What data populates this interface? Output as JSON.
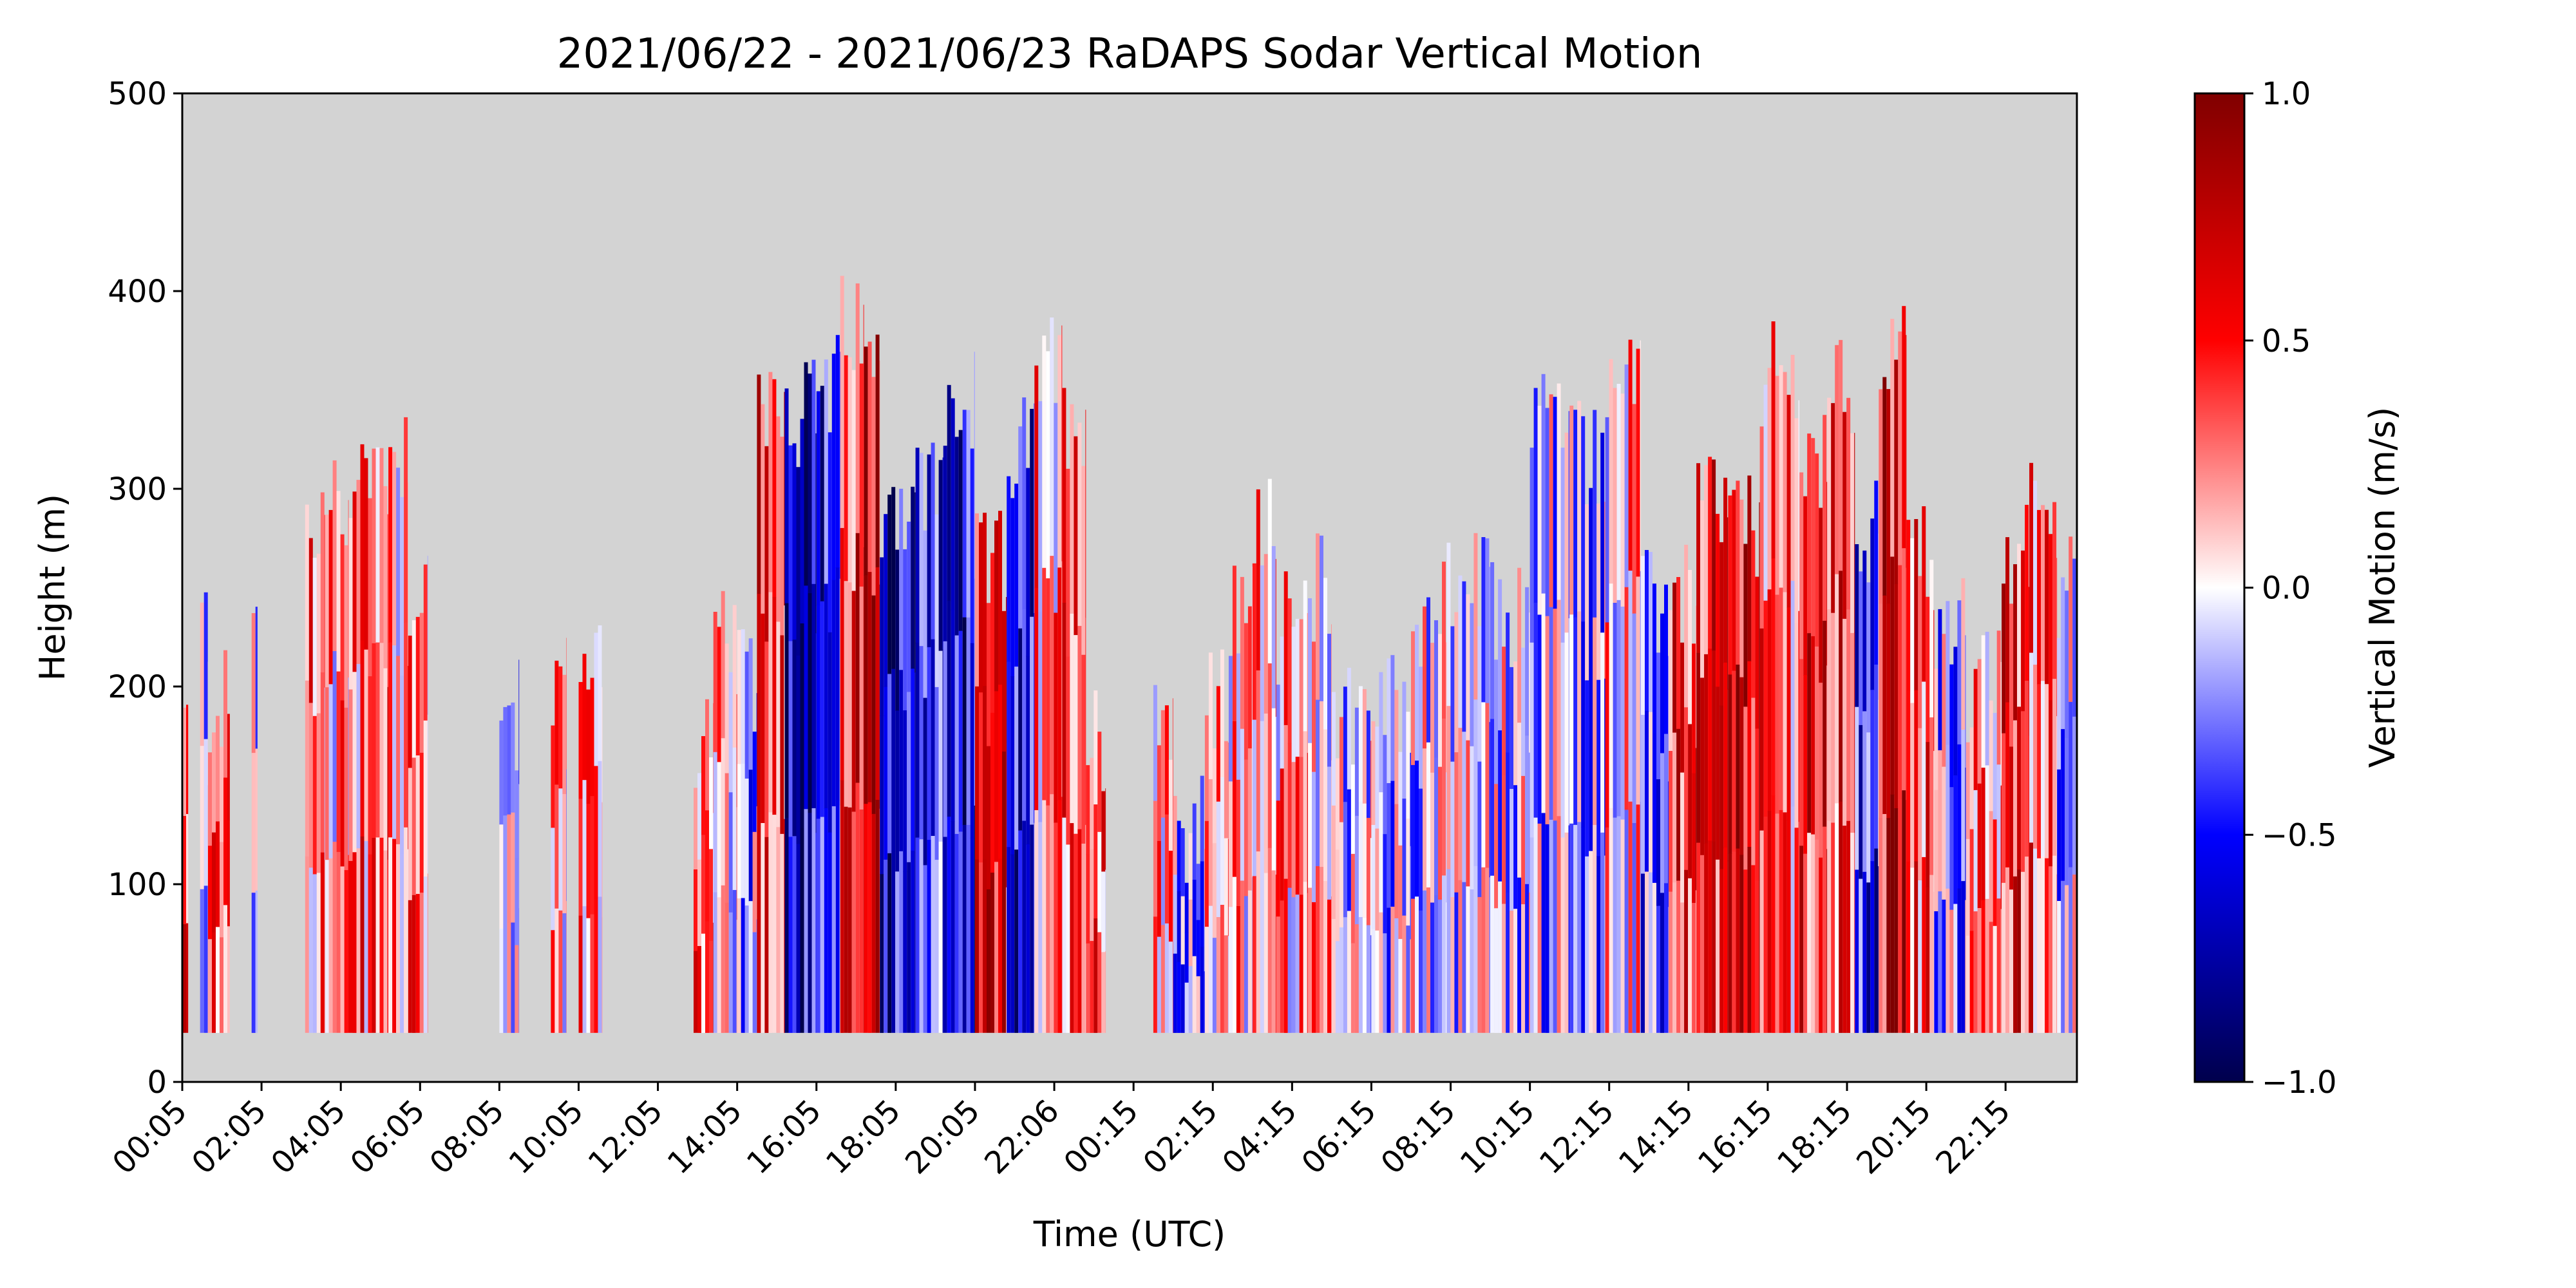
{
  "chart_data": {
    "type": "heatmap",
    "title": "2021/06/22 - 2021/06/23 RaDAPS Sodar Vertical Motion",
    "xlabel": "Time (UTC)",
    "ylabel": "Height (m)",
    "xlim_hours": [
      0,
      47.8
    ],
    "ylim": [
      0,
      500
    ],
    "y_ticks": [
      "0",
      "100",
      "200",
      "300",
      "400",
      "500"
    ],
    "x_ticks": [
      {
        "label": "00:05",
        "hour": 0.0
      },
      {
        "label": "02:05",
        "hour": 2.0
      },
      {
        "label": "04:05",
        "hour": 4.0
      },
      {
        "label": "06:05",
        "hour": 6.0
      },
      {
        "label": "08:05",
        "hour": 8.0
      },
      {
        "label": "10:05",
        "hour": 10.0
      },
      {
        "label": "12:05",
        "hour": 12.0
      },
      {
        "label": "14:05",
        "hour": 14.0
      },
      {
        "label": "16:05",
        "hour": 16.0
      },
      {
        "label": "18:05",
        "hour": 18.0
      },
      {
        "label": "20:05",
        "hour": 20.0
      },
      {
        "label": "22:06",
        "hour": 22.0
      },
      {
        "label": "00:15",
        "hour": 24.0
      },
      {
        "label": "02:15",
        "hour": 26.0
      },
      {
        "label": "04:15",
        "hour": 28.0
      },
      {
        "label": "06:15",
        "hour": 30.0
      },
      {
        "label": "08:15",
        "hour": 32.0
      },
      {
        "label": "10:15",
        "hour": 34.0
      },
      {
        "label": "12:15",
        "hour": 36.0
      },
      {
        "label": "14:15",
        "hour": 38.0
      },
      {
        "label": "16:15",
        "hour": 40.0
      },
      {
        "label": "18:15",
        "hour": 42.0
      },
      {
        "label": "20:15",
        "hour": 44.0
      },
      {
        "label": "22:15",
        "hour": 46.0
      }
    ],
    "colorbar": {
      "label": "Vertical Motion (m/s)",
      "range": [
        -1.0,
        1.0
      ],
      "ticks": [
        "1.0",
        "0.5",
        "0.0",
        "−0.5",
        "−1.0"
      ],
      "colormap": "seismic",
      "colors": [
        "#00004c",
        "#0000ff",
        "#ffffff",
        "#ff0000",
        "#800000"
      ]
    },
    "background_color": "#d3d3d3",
    "data_floor_m": 25,
    "segments": [
      {
        "start": 0.0,
        "end": 0.15,
        "top": 180,
        "mean": 0.35
      },
      {
        "start": 0.45,
        "end": 0.65,
        "top": 230,
        "mean": -0.15
      },
      {
        "start": 0.65,
        "end": 1.2,
        "top": 190,
        "mean": 0.3
      },
      {
        "start": 1.75,
        "end": 1.9,
        "top": 235,
        "mean": -0.05
      },
      {
        "start": 3.1,
        "end": 3.6,
        "top": 280,
        "mean": 0.3
      },
      {
        "start": 3.6,
        "end": 4.2,
        "top": 290,
        "mean": 0.15
      },
      {
        "start": 4.2,
        "end": 5.2,
        "top": 310,
        "mean": 0.3
      },
      {
        "start": 5.2,
        "end": 5.7,
        "top": 320,
        "mean": 0.2
      },
      {
        "start": 5.7,
        "end": 6.2,
        "top": 250,
        "mean": 0.25
      },
      {
        "start": 8.0,
        "end": 8.5,
        "top": 185,
        "mean": -0.15
      },
      {
        "start": 9.3,
        "end": 9.7,
        "top": 200,
        "mean": 0.1
      },
      {
        "start": 10.0,
        "end": 10.6,
        "top": 215,
        "mean": 0.2
      },
      {
        "start": 12.9,
        "end": 13.4,
        "top": 175,
        "mean": 0.35
      },
      {
        "start": 13.4,
        "end": 14.0,
        "top": 220,
        "mean": 0.1
      },
      {
        "start": 14.0,
        "end": 14.5,
        "top": 200,
        "mean": -0.2
      },
      {
        "start": 14.5,
        "end": 15.2,
        "top": 350,
        "mean": 0.45
      },
      {
        "start": 15.2,
        "end": 16.0,
        "top": 340,
        "mean": -0.6
      },
      {
        "start": 16.0,
        "end": 16.6,
        "top": 350,
        "mean": -0.5
      },
      {
        "start": 16.6,
        "end": 17.2,
        "top": 380,
        "mean": 0.5
      },
      {
        "start": 17.2,
        "end": 17.6,
        "top": 360,
        "mean": 0.7
      },
      {
        "start": 17.6,
        "end": 18.5,
        "top": 295,
        "mean": -0.6
      },
      {
        "start": 18.5,
        "end": 19.2,
        "top": 300,
        "mean": -0.45
      },
      {
        "start": 19.2,
        "end": 20.0,
        "top": 340,
        "mean": -0.6
      },
      {
        "start": 20.0,
        "end": 20.8,
        "top": 260,
        "mean": 0.55
      },
      {
        "start": 20.8,
        "end": 21.5,
        "top": 320,
        "mean": -0.55
      },
      {
        "start": 21.5,
        "end": 22.2,
        "top": 360,
        "mean": 0.2
      },
      {
        "start": 22.2,
        "end": 22.8,
        "top": 340,
        "mean": 0.4
      },
      {
        "start": 22.8,
        "end": 23.3,
        "top": 175,
        "mean": 0.35
      },
      {
        "start": 24.5,
        "end": 25.0,
        "top": 190,
        "mean": 0.2
      },
      {
        "start": 25.0,
        "end": 25.8,
        "top": 130,
        "mean": -0.15
      },
      {
        "start": 25.8,
        "end": 26.4,
        "top": 190,
        "mean": 0.15
      },
      {
        "start": 26.4,
        "end": 27.0,
        "top": 235,
        "mean": 0.15
      },
      {
        "start": 27.0,
        "end": 27.6,
        "top": 290,
        "mean": 0.2
      },
      {
        "start": 27.6,
        "end": 28.4,
        "top": 230,
        "mean": 0.15
      },
      {
        "start": 28.4,
        "end": 29.0,
        "top": 250,
        "mean": 0.1
      },
      {
        "start": 29.0,
        "end": 30.0,
        "top": 190,
        "mean": -0.05
      },
      {
        "start": 30.0,
        "end": 31.0,
        "top": 190,
        "mean": -0.1
      },
      {
        "start": 31.0,
        "end": 31.9,
        "top": 235,
        "mean": -0.05
      },
      {
        "start": 31.9,
        "end": 33.0,
        "top": 250,
        "mean": -0.05
      },
      {
        "start": 33.0,
        "end": 34.0,
        "top": 235,
        "mean": -0.05
      },
      {
        "start": 34.0,
        "end": 35.0,
        "top": 340,
        "mean": -0.1
      },
      {
        "start": 35.0,
        "end": 35.9,
        "top": 320,
        "mean": -0.15
      },
      {
        "start": 35.9,
        "end": 36.8,
        "top": 355,
        "mean": 0.1
      },
      {
        "start": 36.8,
        "end": 37.5,
        "top": 240,
        "mean": -0.35
      },
      {
        "start": 37.5,
        "end": 38.2,
        "top": 245,
        "mean": 0.45
      },
      {
        "start": 38.2,
        "end": 39.0,
        "top": 295,
        "mean": 0.55
      },
      {
        "start": 39.0,
        "end": 39.8,
        "top": 280,
        "mean": 0.65
      },
      {
        "start": 39.8,
        "end": 40.8,
        "top": 355,
        "mean": 0.3
      },
      {
        "start": 40.8,
        "end": 41.5,
        "top": 310,
        "mean": 0.5
      },
      {
        "start": 41.5,
        "end": 42.2,
        "top": 350,
        "mean": 0.45
      },
      {
        "start": 42.2,
        "end": 42.8,
        "top": 280,
        "mean": -0.45
      },
      {
        "start": 42.8,
        "end": 43.5,
        "top": 370,
        "mean": 0.6
      },
      {
        "start": 43.5,
        "end": 44.2,
        "top": 265,
        "mean": 0.35
      },
      {
        "start": 44.2,
        "end": 45.0,
        "top": 230,
        "mean": -0.15
      },
      {
        "start": 45.0,
        "end": 45.9,
        "top": 200,
        "mean": 0.2
      },
      {
        "start": 45.9,
        "end": 46.6,
        "top": 265,
        "mean": 0.5
      },
      {
        "start": 46.6,
        "end": 47.3,
        "top": 290,
        "mean": 0.35
      },
      {
        "start": 47.3,
        "end": 47.8,
        "top": 250,
        "mean": -0.1
      }
    ]
  }
}
